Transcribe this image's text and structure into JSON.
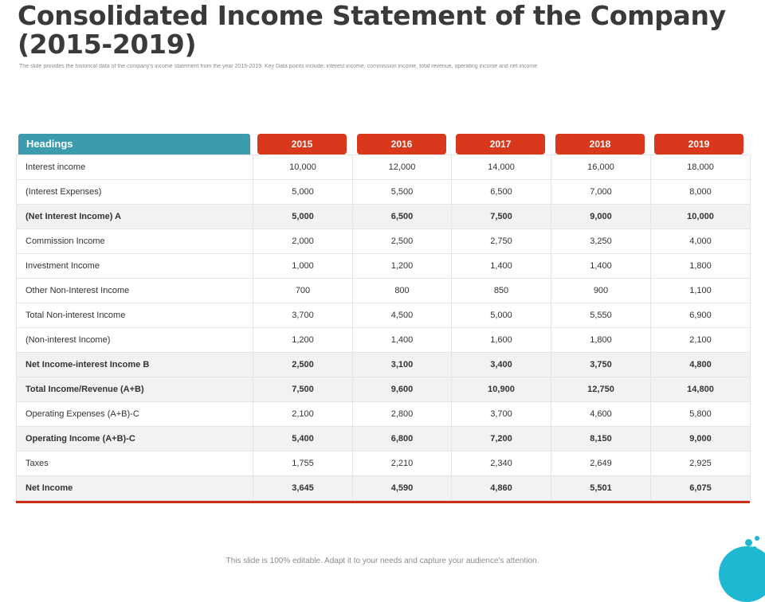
{
  "title": "Consolidated Income Statement of the Company (2015-2019)",
  "subtitle": "The slide provides the historical  data of the company's income statement from the year 2015-2019. Key Data points include: interest income, commission income, total revenue, operating income and net income",
  "table": {
    "heading_label": "Headings",
    "years": [
      "2015",
      "2016",
      "2017",
      "2018",
      "2019"
    ],
    "rows": [
      {
        "label": "Interest income",
        "values": [
          "10,000",
          "12,000",
          "14,000",
          "16,000",
          "18,000"
        ],
        "bold": false
      },
      {
        "label": "(Interest Expenses)",
        "values": [
          "5,000",
          "5,500",
          "6,500",
          "7,000",
          "8,000"
        ],
        "bold": false
      },
      {
        "label": "(Net Interest Income) A",
        "values": [
          "5,000",
          "6,500",
          "7,500",
          "9,000",
          "10,000"
        ],
        "bold": true
      },
      {
        "label": "Commission Income",
        "values": [
          "2,000",
          "2,500",
          "2,750",
          "3,250",
          "4,000"
        ],
        "bold": false
      },
      {
        "label": "Investment Income",
        "values": [
          "1,000",
          "1,200",
          "1,400",
          "1,400",
          "1,800"
        ],
        "bold": false
      },
      {
        "label": "Other Non-Interest Income",
        "values": [
          "700",
          "800",
          "850",
          "900",
          "1,100"
        ],
        "bold": false
      },
      {
        "label": "Total Non-interest Income",
        "values": [
          "3,700",
          "4,500",
          "5,000",
          "5,550",
          "6,900"
        ],
        "bold": false
      },
      {
        "label": "(Non-interest Income)",
        "values": [
          "1,200",
          "1,400",
          "1,600",
          "1,800",
          "2,100"
        ],
        "bold": false
      },
      {
        "label": "Net Income-interest Income B",
        "values": [
          "2,500",
          "3,100",
          "3,400",
          "3,750",
          "4,800"
        ],
        "bold": true
      },
      {
        "label": "Total Income/Revenue  (A+B)",
        "values": [
          "7,500",
          "9,600",
          "10,900",
          "12,750",
          "14,800"
        ],
        "bold": true
      },
      {
        "label": "Operating Expenses (A+B)-C",
        "values": [
          "2,100",
          "2,800",
          "3,700",
          "4,600",
          "5,800"
        ],
        "bold": false
      },
      {
        "label": "Operating Income  (A+B)-C",
        "values": [
          "5,400",
          "6,800",
          "7,200",
          "8,150",
          "9,000"
        ],
        "bold": true
      },
      {
        "label": "Taxes",
        "values": [
          "1,755",
          "2,210",
          "2,340",
          "2,649",
          "2,925"
        ],
        "bold": false
      },
      {
        "label": "Net Income",
        "values": [
          "3,645",
          "4,590",
          "4,860",
          "5,501",
          "6,075"
        ],
        "bold": true
      }
    ]
  },
  "footer": "This slide is 100% editable.  Adapt it to your needs and capture your audience's attention.",
  "colors": {
    "heading_bg": "#3c9cad",
    "year_bg": "#d9381c",
    "accent_line": "#c9301a",
    "decor": "#1fb8d2"
  }
}
